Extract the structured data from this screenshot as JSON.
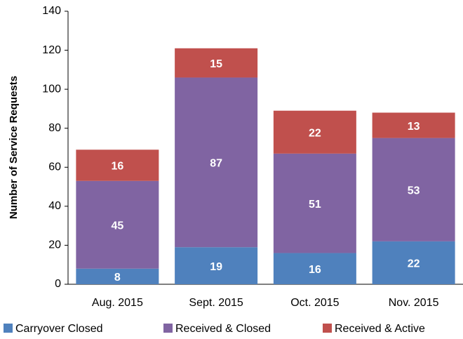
{
  "chart_data": {
    "type": "bar",
    "stacked": true,
    "y_label": "Number of Service Requests",
    "categories": [
      "Aug. 2015",
      "Sept. 2015",
      "Oct. 2015",
      "Nov. 2015"
    ],
    "series": [
      {
        "name": "Carryover Closed",
        "color": "#4f81bd",
        "values": [
          8,
          19,
          16,
          22
        ]
      },
      {
        "name": "Received & Closed",
        "color": "#8064a2",
        "values": [
          45,
          87,
          51,
          53
        ]
      },
      {
        "name": "Received & Active",
        "color": "#c0504d",
        "values": [
          16,
          15,
          22,
          13
        ]
      }
    ],
    "ylim": [
      0,
      140
    ],
    "yticks": [
      0,
      20,
      40,
      60,
      80,
      100,
      120,
      140
    ],
    "grid": false,
    "legend": "bottom"
  }
}
